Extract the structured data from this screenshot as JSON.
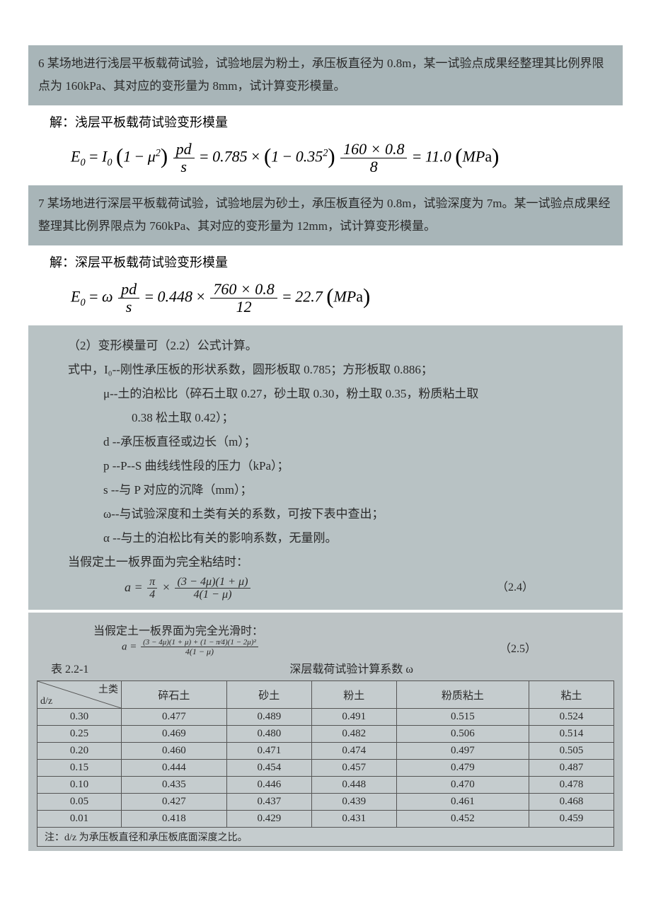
{
  "problem6": {
    "text": "6 某场地进行浅层平板载荷试验，试验地层为粉土，承压板直径为 0.8m，某一试验点成果经整理其比例界限点为 160kPa、其对应的变形量为 8mm，试计算变形模量。",
    "answer_label": "解：浅层平板载荷试验变形模量",
    "E_sym": "E",
    "sub0": "0",
    "I_sym": "I",
    "mu_sym": "μ",
    "pd": "pd",
    "s": "s",
    "val_I0": "0.785",
    "val_mu": "0.35",
    "sup2": "2",
    "num_calc": "160 × 0.8",
    "den_calc": "8",
    "result": "11.0",
    "unit": "MPa"
  },
  "problem7": {
    "text": "7 某场地进行深层平板载荷试验，试验地层为砂土，承压板直径为 0.8m，试验深度为 7m。某一试验点成果经整理其比例界限点为 760kPa、其对应的变形量为 12mm，试计算变形模量。",
    "answer_label": "解：深层平板载荷试验变形模量",
    "omega": "ω",
    "val_omega": "0.448",
    "num_calc": "760 × 0.8",
    "den_calc": "12",
    "result": "22.7",
    "unit": "MPa"
  },
  "notes": {
    "line_intro": "（2）变形模量可（2.2）公式计算。",
    "line_shizhong": "式中，I₀--刚性承压板的形状系数，圆形板取 0.785；方形板取 0.886；",
    "line_mu": "μ--土的泊松比（碎石土取 0.27，砂土取 0.30，粉土取 0.35，粉质粘土取",
    "line_mu_cont": "0.38 松土取 0.42）；",
    "line_d": "d --承压板直径或边长（m）；",
    "line_p": "p --P--S 曲线线性段的压力（kPa）；",
    "line_s": "s --与 P 对应的沉降（mm）；",
    "line_omega": "ω--与试验深度和土类有关的系数，可按下表中查出；",
    "line_alpha": "α --与土的泊松比有关的影响系数，无量刚。",
    "line_bond": "当假定土一板界面为完全粘结时：",
    "eq24_lhs": "a =",
    "eq24_pi4": "π",
    "eq24_4": "4",
    "eq24_num": "(3 − 4μ)(1 + μ)",
    "eq24_den": "4(1 − μ)",
    "eq24_label": "（2.4）",
    "line_smooth": "当假定土一板界面为完全光滑时：",
    "eq25_lhs": "a =",
    "eq25_num": "(3 − 4μ)(1 + μ) + (1 − π⁄4)(1 − 2μ)²",
    "eq25_den": "4(1 − μ)",
    "eq25_label": "（2.5）"
  },
  "table": {
    "label": "表 2.2-1",
    "title": "深层载荷试验计算系数 ω",
    "diag_top": "土类",
    "diag_bottom": "d/z",
    "headers": [
      "碎石土",
      "砂土",
      "粉土",
      "粉质粘土",
      "粘土"
    ],
    "rows": [
      {
        "k": "0.30",
        "v": [
          "0.477",
          "0.489",
          "0.491",
          "0.515",
          "0.524"
        ]
      },
      {
        "k": "0.25",
        "v": [
          "0.469",
          "0.480",
          "0.482",
          "0.506",
          "0.514"
        ]
      },
      {
        "k": "0.20",
        "v": [
          "0.460",
          "0.471",
          "0.474",
          "0.497",
          "0.505"
        ]
      },
      {
        "k": "0.15",
        "v": [
          "0.444",
          "0.454",
          "0.457",
          "0.479",
          "0.487"
        ]
      },
      {
        "k": "0.10",
        "v": [
          "0.435",
          "0.446",
          "0.448",
          "0.470",
          "0.478"
        ]
      },
      {
        "k": "0.05",
        "v": [
          "0.427",
          "0.437",
          "0.439",
          "0.461",
          "0.468"
        ]
      },
      {
        "k": "0.01",
        "v": [
          "0.418",
          "0.429",
          "0.431",
          "0.452",
          "0.459"
        ]
      }
    ],
    "footnote": "注：d/z 为承压板直径和承压板底面深度之比。"
  }
}
